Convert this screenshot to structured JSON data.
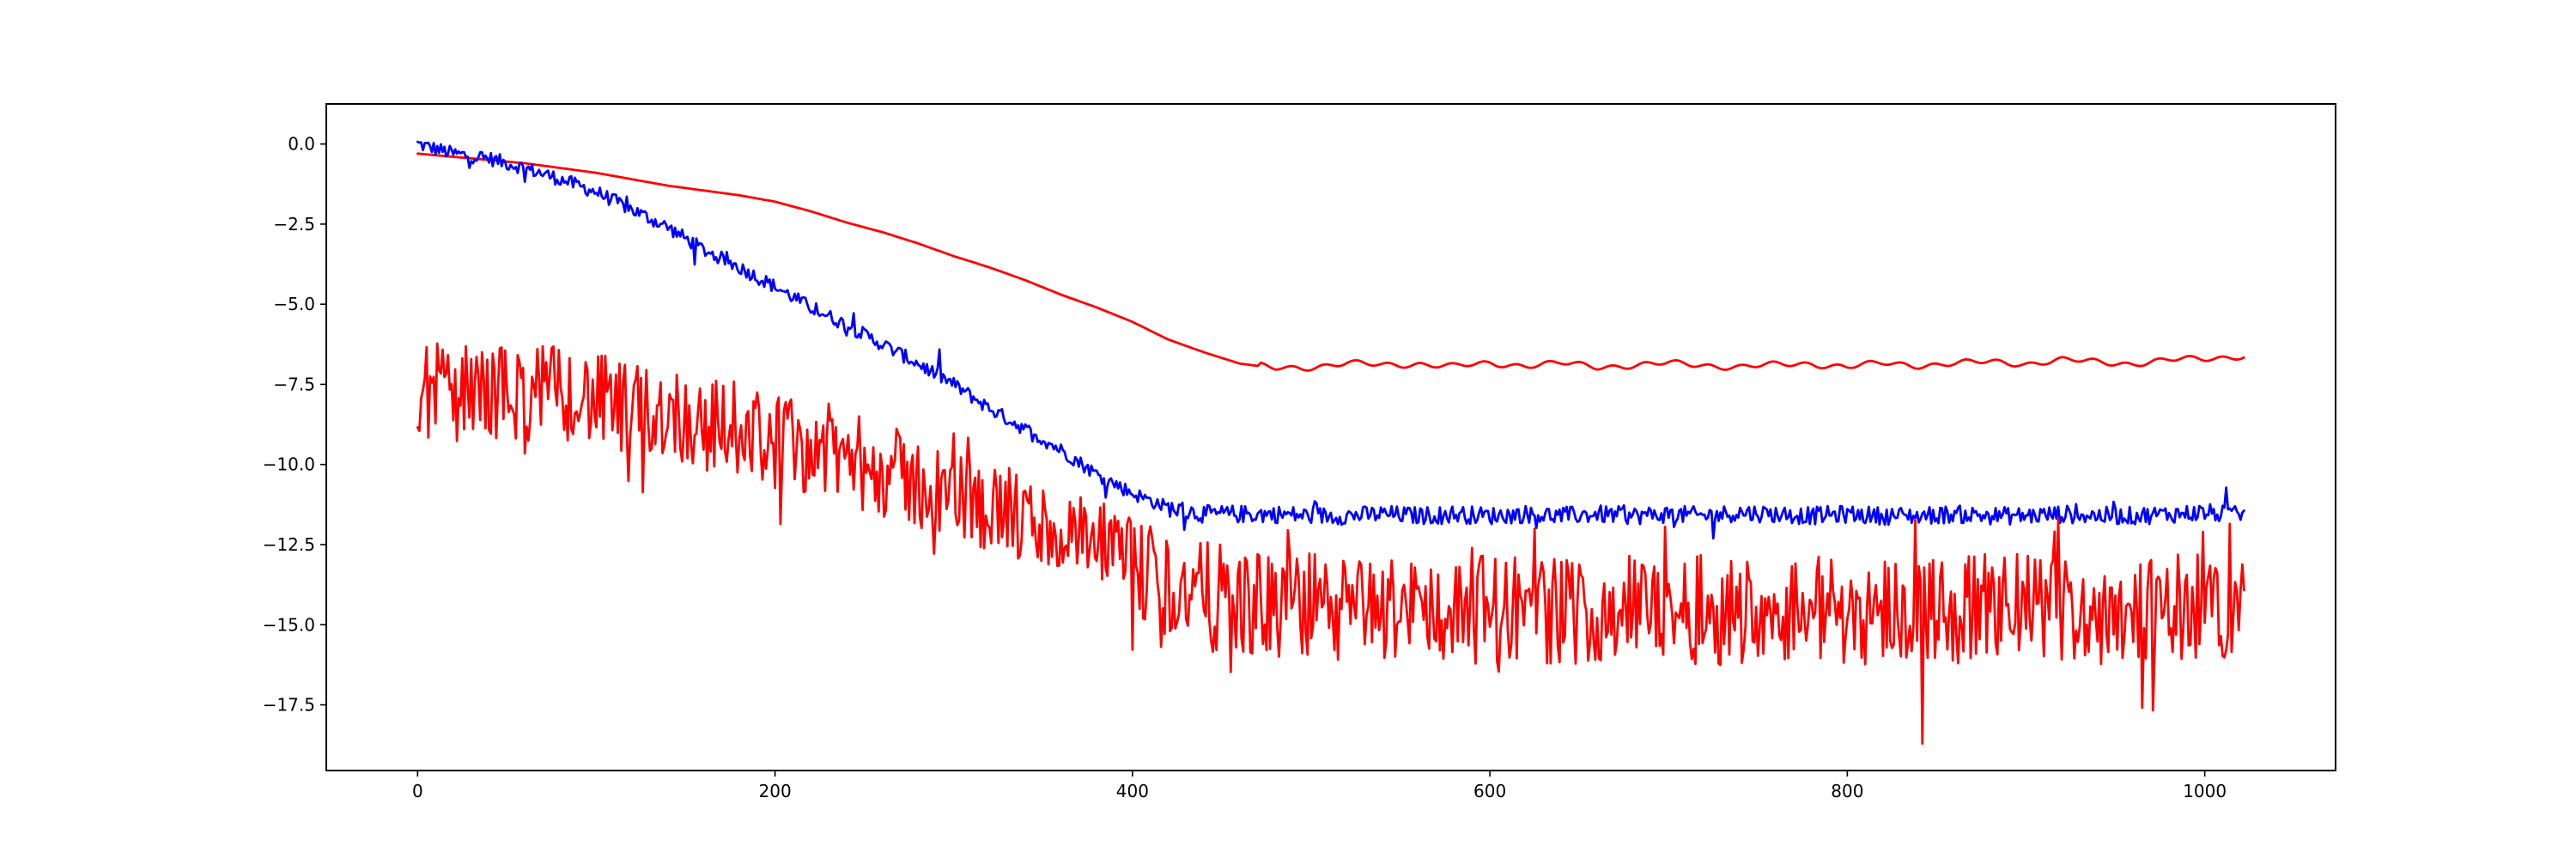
{
  "chart_data": {
    "type": "line",
    "title": "",
    "xlabel": "",
    "ylabel": "",
    "xlim": [
      -51.1,
      1073.2
    ],
    "ylim": [
      -19.55,
      1.25
    ],
    "grid": false,
    "legend": "none",
    "x_ticks": [
      {
        "value": 0,
        "label": "0"
      },
      {
        "value": 200,
        "label": "200"
      },
      {
        "value": 400,
        "label": "400"
      },
      {
        "value": 600,
        "label": "600"
      },
      {
        "value": 800,
        "label": "800"
      },
      {
        "value": 1000,
        "label": "1000"
      }
    ],
    "y_ticks": [
      {
        "value": 0,
        "label": "0.0"
      },
      {
        "value": -2.5,
        "label": "−2.5"
      },
      {
        "value": -5,
        "label": "−5.0"
      },
      {
        "value": -7.5,
        "label": "−7.5"
      },
      {
        "value": -10,
        "label": "−10.0"
      },
      {
        "value": -12.5,
        "label": "−12.5"
      },
      {
        "value": -15,
        "label": "−15.0"
      },
      {
        "value": -17.5,
        "label": "−17.5"
      }
    ],
    "series": [
      {
        "color": "#ff0000",
        "style": "smooth",
        "x": [
          0,
          20,
          40,
          60,
          80,
          100,
          120,
          140,
          160,
          180,
          200,
          220,
          240,
          260,
          280,
          300,
          320,
          340,
          360,
          380,
          400,
          420,
          440,
          460,
          480,
          500,
          520,
          540,
          560,
          580,
          600,
          620,
          640,
          660,
          680,
          700,
          720,
          740,
          760,
          780,
          800,
          820,
          840,
          860,
          880,
          900,
          920,
          940,
          960,
          980,
          1000,
          1022
        ],
        "y": [
          -0.3,
          -0.4,
          -0.5,
          -0.6,
          -0.75,
          -0.9,
          -1.1,
          -1.3,
          -1.45,
          -1.6,
          -1.8,
          -2.1,
          -2.45,
          -2.75,
          -3.1,
          -3.5,
          -3.85,
          -4.25,
          -4.7,
          -5.1,
          -5.55,
          -6.1,
          -6.5,
          -6.85,
          -7.0,
          -6.95,
          -6.85,
          -6.9,
          -6.85,
          -6.95,
          -6.85,
          -6.9,
          -6.85,
          -6.95,
          -6.9,
          -6.85,
          -6.9,
          -6.95,
          -6.9,
          -6.85,
          -6.95,
          -6.85,
          -6.9,
          -6.85,
          -6.8,
          -6.85,
          -6.75,
          -6.8,
          -6.85,
          -6.75,
          -6.7,
          -6.6
        ]
      },
      {
        "color": "#0000ff",
        "style": "noisy",
        "x": [
          0,
          20,
          40,
          60,
          80,
          100,
          120,
          140,
          160,
          180,
          200,
          220,
          240,
          260,
          280,
          300,
          320,
          340,
          360,
          380,
          400,
          420,
          440,
          460,
          480,
          500,
          520,
          540,
          560,
          580,
          600,
          620,
          640,
          660,
          680,
          700,
          720,
          740,
          760,
          780,
          800,
          820,
          840,
          860,
          880,
          900,
          920,
          940,
          960,
          980,
          1000,
          1022
        ],
        "y": [
          0.0,
          -0.3,
          -0.45,
          -0.75,
          -1.1,
          -1.5,
          -2.05,
          -2.6,
          -3.3,
          -3.85,
          -4.45,
          -5.1,
          -5.65,
          -6.25,
          -6.85,
          -7.5,
          -8.25,
          -8.9,
          -9.55,
          -10.3,
          -10.9,
          -11.35,
          -11.55,
          -11.55,
          -11.55,
          -11.6,
          -11.6,
          -11.55,
          -11.6,
          -11.55,
          -11.6,
          -11.55,
          -11.6,
          -11.55,
          -11.6,
          -11.55,
          -11.6,
          -11.5,
          -11.55,
          -11.6,
          -11.55,
          -11.6,
          -11.6,
          -11.55,
          -11.6,
          -11.6,
          -11.55,
          -11.6,
          -11.6,
          -11.55,
          -11.5,
          -11.6
        ]
      },
      {
        "color": "#ff0000",
        "style": "very-noisy",
        "x": [
          0,
          20,
          40,
          60,
          80,
          100,
          120,
          140,
          160,
          180,
          200,
          220,
          240,
          260,
          280,
          300,
          320,
          340,
          360,
          380,
          400,
          420,
          440,
          460,
          480,
          500,
          520,
          540,
          560,
          580,
          600,
          620,
          640,
          660,
          680,
          700,
          720,
          740,
          760,
          780,
          800,
          820,
          840,
          860,
          880,
          900,
          920,
          940,
          960,
          980,
          1000,
          1022
        ],
        "y": [
          -7.6,
          -7.8,
          -7.7,
          -7.8,
          -7.7,
          -8.0,
          -8.4,
          -8.3,
          -8.8,
          -8.8,
          -9.3,
          -9.4,
          -9.8,
          -10.2,
          -10.6,
          -11.0,
          -11.3,
          -11.8,
          -12.2,
          -12.6,
          -13.2,
          -13.8,
          -14.1,
          -14.3,
          -14.5,
          -14.4,
          -14.6,
          -14.5,
          -14.4,
          -14.6,
          -14.5,
          -14.4,
          -14.6,
          -14.5,
          -14.5,
          -14.4,
          -14.6,
          -14.5,
          -14.5,
          -14.4,
          -14.6,
          -14.5,
          -14.4,
          -14.6,
          -14.5,
          -14.4,
          -14.5,
          -14.6,
          -14.4,
          -14.5,
          -14.4,
          -14.3
        ]
      }
    ]
  }
}
